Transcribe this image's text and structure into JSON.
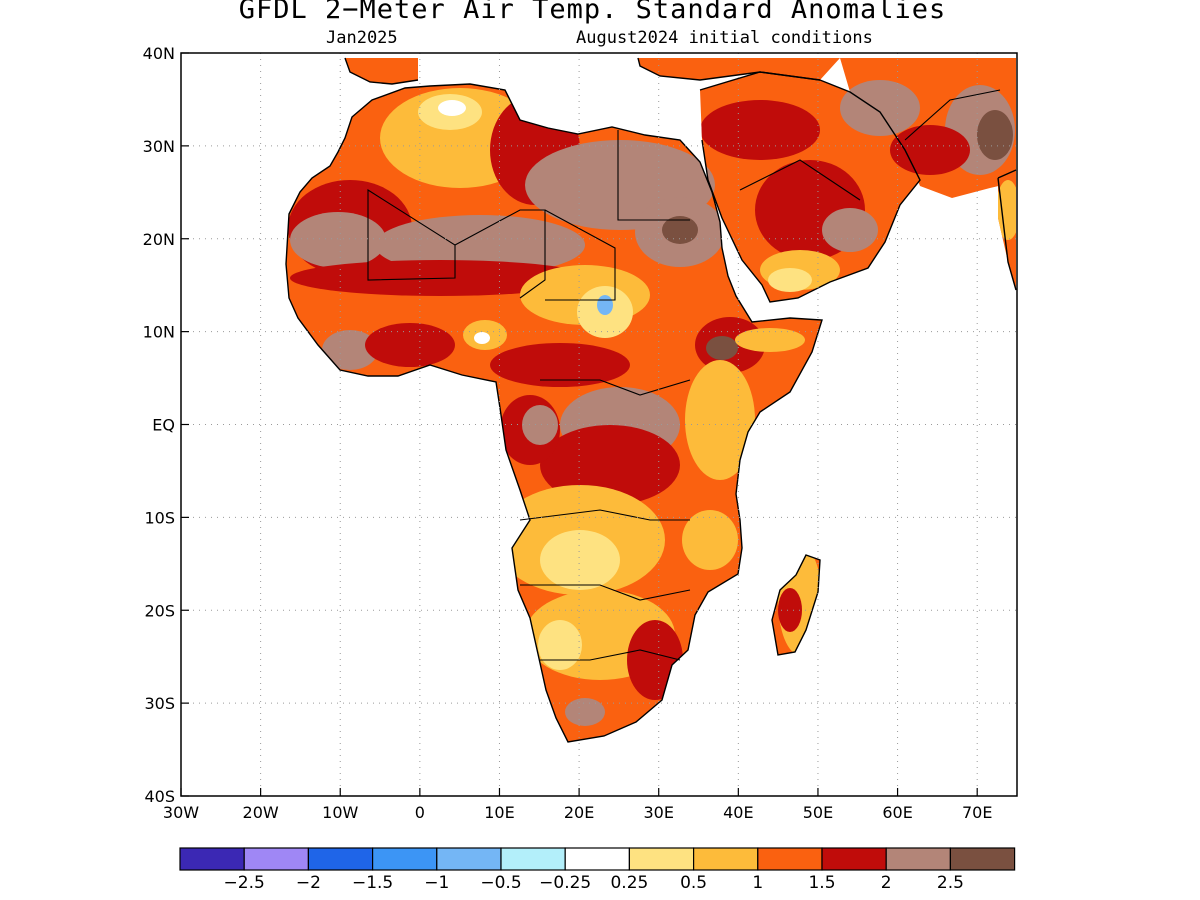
{
  "title": "GFDL 2−Meter Air Temp. Standard Anomalies",
  "subtitle_left": "Jan2025",
  "subtitle_right": "August2024 initial conditions",
  "map": {
    "lon_range": [
      -30,
      75
    ],
    "lat_range": [
      -40,
      40
    ],
    "x_ticks": [
      "30W",
      "20W",
      "10W",
      "0",
      "10E",
      "20E",
      "30E",
      "40E",
      "50E",
      "60E",
      "70E"
    ],
    "y_ticks": [
      "40N",
      "30N",
      "20N",
      "10N",
      "EQ",
      "10S",
      "20S",
      "30S",
      "40S"
    ],
    "gridlines": "dotted"
  },
  "legend": {
    "colors": [
      "#3b28b4",
      "#9f87f5",
      "#1f65e8",
      "#3c95f5",
      "#74b6f5",
      "#b3effa",
      "#ffffff",
      "#fee281",
      "#fdbb3a",
      "#fa6110",
      "#c00c0a",
      "#b38578",
      "#7a5040"
    ],
    "labels": [
      "−2.5",
      "−2",
      "−1.5",
      "−1",
      "−0.5",
      "−0.25",
      "0.25",
      "0.5",
      "1",
      "1.5",
      "2",
      "2.5"
    ]
  }
}
